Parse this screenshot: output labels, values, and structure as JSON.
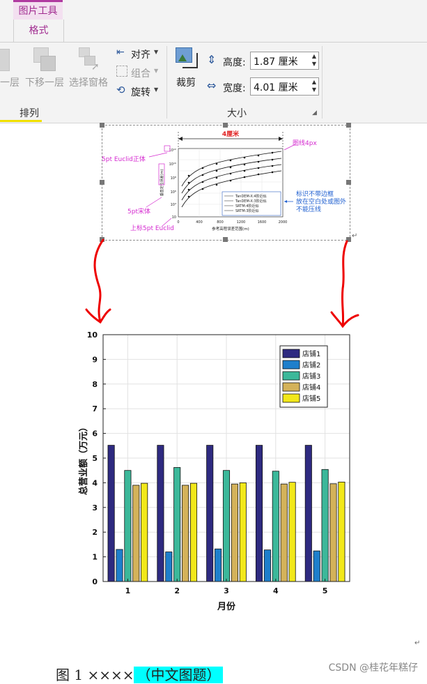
{
  "ribbon": {
    "context_tab": "图片工具",
    "active_tab": "格式",
    "arrange": {
      "bring_forward_partial": "一层",
      "send_backward": "下移一层",
      "selection_pane": "选择窗格",
      "align": "对齐",
      "group": "组合",
      "rotate": "旋转",
      "group_label": "排列"
    },
    "size": {
      "crop": "裁剪",
      "height_label": "高度:",
      "height_value": "1.87 厘米",
      "width_label": "宽度:",
      "width_value": "4.01 厘米",
      "group_label": "大小"
    }
  },
  "figure_thumbnail": {
    "width_note": "4厘米",
    "label_topleft": "5pt Euclid正体",
    "label_line": "图线4px",
    "label_song": "5pt宋体",
    "label_superscript": "上标5pt Euclid",
    "note": [
      "标识不带边框",
      "放在空白处或图外",
      "不能压线"
    ],
    "xlabel": "参考高程误差范围(m)",
    "ylabel": "垂直定位误差(m)",
    "xticks": [
      "0",
      "400",
      "800",
      "1200",
      "1600",
      "2000"
    ],
    "yticks": [
      "10⁲",
      "10⁴",
      "10⁶",
      "10⁸",
      "10¹⁰",
      "10¹²"
    ],
    "legend": [
      "TanDEM-X:4阶近似",
      "TanDEM-X:3阶近似",
      "SRTM:4阶近似",
      "SRTM:3阶近似"
    ]
  },
  "chart_data": {
    "type": "bar",
    "categories": [
      "1",
      "2",
      "3",
      "4",
      "5"
    ],
    "series": [
      {
        "name": "店铺1",
        "values": [
          5.52,
          5.52,
          5.52,
          5.52,
          5.52
        ],
        "color": "#2e2a80"
      },
      {
        "name": "店铺2",
        "values": [
          1.3,
          1.2,
          1.32,
          1.28,
          1.24
        ],
        "color": "#1e7fcc"
      },
      {
        "name": "店铺3",
        "values": [
          4.5,
          4.62,
          4.5,
          4.47,
          4.54
        ],
        "color": "#3cb89a"
      },
      {
        "name": "店铺4",
        "values": [
          3.9,
          3.9,
          3.95,
          3.95,
          3.96
        ],
        "color": "#d4b25a"
      },
      {
        "name": "店铺5",
        "values": [
          3.98,
          3.98,
          4.0,
          4.02,
          4.03
        ],
        "color": "#f2e81a"
      }
    ],
    "xlabel": "月份",
    "ylabel": "总营业额（万元）",
    "ylim": [
      0,
      10
    ],
    "yticks": [
      "0",
      "1",
      "2",
      "3",
      "4",
      "5",
      "6",
      "7",
      "8",
      "9",
      "10"
    ],
    "grid": true,
    "legend_position": "top-right"
  },
  "caption": {
    "prefix": "图 1 ××××",
    "highlight": "（中文图题）"
  },
  "watermark": "CSDN @桂花年糕仔",
  "para_mark": "↵"
}
